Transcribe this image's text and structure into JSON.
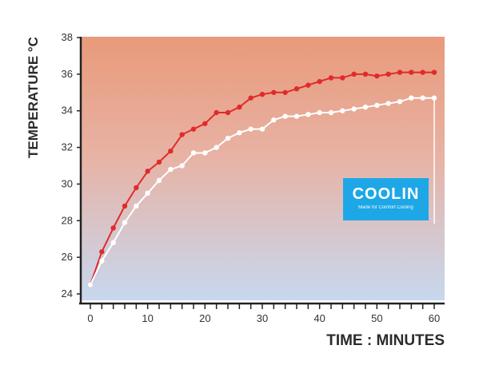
{
  "chart_data": {
    "type": "line",
    "ylabel": "TEMPERATURE °C",
    "xlabel": "TIME : MINUTES",
    "xlim": [
      0,
      60
    ],
    "ylim": [
      24,
      38
    ],
    "x_ticks": [
      0,
      10,
      20,
      30,
      40,
      50,
      60
    ],
    "y_ticks": [
      24,
      26,
      28,
      30,
      32,
      34,
      36,
      38
    ],
    "grid": false,
    "background": "gradient",
    "colors": {
      "red_series": "#e02b2b",
      "white_series": "#ffffff",
      "bg_top": "#e99a7a",
      "bg_bottom": "#c7d8ef",
      "brand_box": "#1ea7e6"
    },
    "series": [
      {
        "color": "#e02b2b",
        "x": [
          0,
          2,
          4,
          6,
          8,
          10,
          12,
          14,
          16,
          18,
          20,
          22,
          24,
          26,
          28,
          30,
          32,
          34,
          36,
          38,
          40,
          42,
          44,
          46,
          48,
          50,
          52,
          54,
          56,
          58,
          60
        ],
        "values": [
          24.5,
          26.3,
          27.6,
          28.8,
          29.8,
          30.7,
          31.2,
          31.8,
          32.7,
          33.0,
          33.3,
          33.9,
          33.9,
          34.2,
          34.7,
          34.9,
          35.0,
          35.0,
          35.2,
          35.4,
          35.6,
          35.8,
          35.8,
          36.0,
          36.0,
          35.9,
          36.0,
          36.1,
          36.1,
          36.1,
          36.1
        ]
      },
      {
        "color": "#ffffff",
        "x": [
          0,
          2,
          4,
          6,
          8,
          10,
          12,
          14,
          16,
          18,
          20,
          22,
          24,
          26,
          28,
          30,
          32,
          34,
          36,
          38,
          40,
          42,
          44,
          46,
          48,
          50,
          52,
          54,
          56,
          58,
          60
        ],
        "values": [
          24.5,
          25.8,
          26.8,
          27.9,
          28.8,
          29.5,
          30.2,
          30.8,
          31.0,
          31.7,
          31.7,
          32.0,
          32.5,
          32.8,
          33.0,
          33.0,
          33.5,
          33.7,
          33.7,
          33.8,
          33.9,
          33.9,
          34.0,
          34.1,
          34.2,
          34.3,
          34.4,
          34.5,
          34.7,
          34.7,
          34.7
        ]
      }
    ]
  },
  "brand": {
    "name": "COOLIN",
    "tagline": "Made for Comfort Cooling"
  }
}
